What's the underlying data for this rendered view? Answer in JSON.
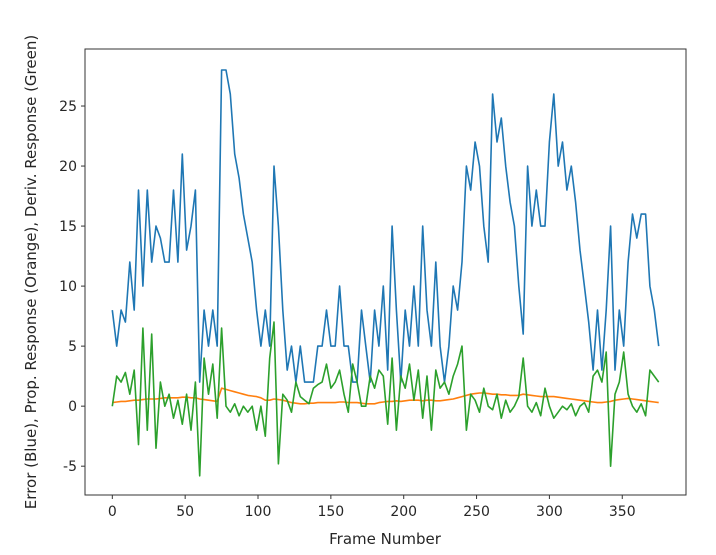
{
  "chart_data": {
    "type": "line",
    "title": "",
    "xlabel": "Frame Number",
    "ylabel": "Error (Blue), Prop. Response (Orange), Deriv. Response (Green)",
    "xlim": [
      -18.75,
      393.75
    ],
    "ylim": [
      -7.4,
      29.75
    ],
    "xticks": [
      0,
      50,
      100,
      150,
      200,
      250,
      300,
      350
    ],
    "yticks": [
      -5,
      0,
      5,
      10,
      15,
      20,
      25
    ],
    "grid": false,
    "legend": "none",
    "x": [
      0,
      3,
      6,
      9,
      12,
      15,
      18,
      21,
      24,
      27,
      30,
      33,
      36,
      39,
      42,
      45,
      48,
      51,
      54,
      57,
      60,
      63,
      66,
      69,
      72,
      75,
      78,
      81,
      84,
      87,
      90,
      93,
      96,
      99,
      102,
      105,
      108,
      111,
      114,
      117,
      120,
      123,
      126,
      129,
      132,
      135,
      138,
      141,
      144,
      147,
      150,
      153,
      156,
      159,
      162,
      165,
      168,
      171,
      174,
      177,
      180,
      183,
      186,
      189,
      192,
      195,
      198,
      201,
      204,
      207,
      210,
      213,
      216,
      219,
      222,
      225,
      228,
      231,
      234,
      237,
      240,
      243,
      246,
      249,
      252,
      255,
      258,
      261,
      264,
      267,
      270,
      273,
      276,
      279,
      282,
      285,
      288,
      291,
      294,
      297,
      300,
      303,
      306,
      309,
      312,
      315,
      318,
      321,
      324,
      327,
      330,
      333,
      336,
      339,
      342,
      345,
      348,
      351,
      354,
      357,
      360,
      363,
      366,
      369,
      372,
      375
    ],
    "series": [
      {
        "color": "#1f77b4",
        "values": [
          8,
          5,
          8,
          7,
          12,
          8,
          18,
          10,
          18,
          12,
          15,
          14,
          12,
          12,
          18,
          12,
          21,
          13,
          15,
          18,
          2,
          8,
          5,
          8,
          5,
          28,
          28,
          26,
          21,
          19,
          16,
          14,
          12,
          8,
          5,
          8,
          5,
          20,
          15,
          8,
          3,
          5,
          2,
          5,
          2,
          2,
          2,
          5,
          5,
          8,
          5,
          5,
          10,
          5,
          5,
          2,
          2,
          8,
          5,
          2,
          8,
          5,
          10,
          3,
          15,
          8,
          2,
          8,
          5,
          10,
          5,
          15,
          8,
          5,
          12,
          5,
          2,
          5,
          10,
          8,
          12,
          20,
          18,
          22,
          20,
          15,
          12,
          26,
          22,
          24,
          20,
          17,
          15,
          10,
          6,
          20,
          15,
          18,
          15,
          15,
          22,
          26,
          20,
          22,
          18,
          20,
          17,
          13,
          10,
          7,
          3,
          8,
          3,
          8,
          15,
          3,
          8,
          5,
          12,
          16,
          14,
          16,
          16,
          10,
          8,
          5
        ]
      },
      {
        "color": "#ff7f0e",
        "values": [
          0.3,
          0.35,
          0.4,
          0.4,
          0.45,
          0.5,
          0.5,
          0.55,
          0.6,
          0.6,
          0.6,
          0.65,
          0.7,
          0.7,
          0.7,
          0.7,
          0.75,
          0.75,
          0.7,
          0.7,
          0.6,
          0.55,
          0.5,
          0.45,
          0.4,
          1.5,
          1.4,
          1.3,
          1.2,
          1.1,
          1.0,
          0.9,
          0.85,
          0.8,
          0.7,
          0.5,
          0.5,
          0.6,
          0.55,
          0.5,
          0.4,
          0.3,
          0.25,
          0.2,
          0.2,
          0.25,
          0.25,
          0.3,
          0.3,
          0.3,
          0.3,
          0.3,
          0.35,
          0.35,
          0.3,
          0.3,
          0.3,
          0.25,
          0.2,
          0.2,
          0.2,
          0.3,
          0.35,
          0.4,
          0.4,
          0.45,
          0.4,
          0.45,
          0.5,
          0.5,
          0.5,
          0.45,
          0.5,
          0.5,
          0.45,
          0.45,
          0.5,
          0.55,
          0.6,
          0.7,
          0.8,
          0.9,
          1.0,
          1.05,
          1.1,
          1.1,
          1.05,
          1.0,
          1.0,
          0.95,
          0.95,
          0.9,
          0.9,
          0.9,
          1.0,
          0.95,
          0.9,
          0.85,
          0.8,
          0.8,
          0.8,
          0.8,
          0.75,
          0.7,
          0.65,
          0.6,
          0.55,
          0.5,
          0.45,
          0.4,
          0.35,
          0.3,
          0.3,
          0.35,
          0.4,
          0.5,
          0.55,
          0.6,
          0.65,
          0.6,
          0.55,
          0.5,
          0.45,
          0.4,
          0.35,
          0.3
        ]
      },
      {
        "color": "#2ca02c",
        "values": [
          0,
          2.5,
          2,
          2.8,
          1,
          3,
          -3.2,
          6.5,
          -2,
          6,
          -3.5,
          2,
          0,
          1,
          -1,
          0.5,
          -1.5,
          1,
          -2,
          2,
          -5.8,
          4,
          1,
          3.5,
          -1,
          6.5,
          0,
          -0.5,
          0.2,
          -0.8,
          0,
          -0.5,
          0,
          -2,
          0,
          -2.5,
          4,
          7,
          -4.8,
          1,
          0.5,
          -0.5,
          2,
          0.8,
          0.5,
          0.2,
          1.5,
          1.8,
          2,
          3.5,
          1.5,
          2,
          3,
          1,
          -0.5,
          3.5,
          2,
          0,
          0,
          2.5,
          1.5,
          3,
          2.5,
          -1.5,
          4,
          -2,
          2.5,
          1.5,
          3.5,
          0.5,
          3,
          -1,
          2.5,
          -2,
          3,
          1.5,
          2,
          1,
          2.5,
          3.5,
          5,
          -2,
          1,
          0.5,
          -0.5,
          1.5,
          0,
          -0.3,
          1,
          -1,
          0.5,
          -0.5,
          0,
          0.8,
          4,
          0,
          -0.5,
          0.3,
          -0.8,
          1.5,
          0,
          -1,
          -0.5,
          0,
          -0.3,
          0.2,
          -0.8,
          0,
          0.3,
          -0.5,
          2.5,
          3,
          2,
          4.5,
          -5,
          1,
          2,
          4.5,
          1,
          0,
          -0.5,
          0.2,
          -0.8,
          3,
          2.5,
          2
        ]
      }
    ]
  }
}
